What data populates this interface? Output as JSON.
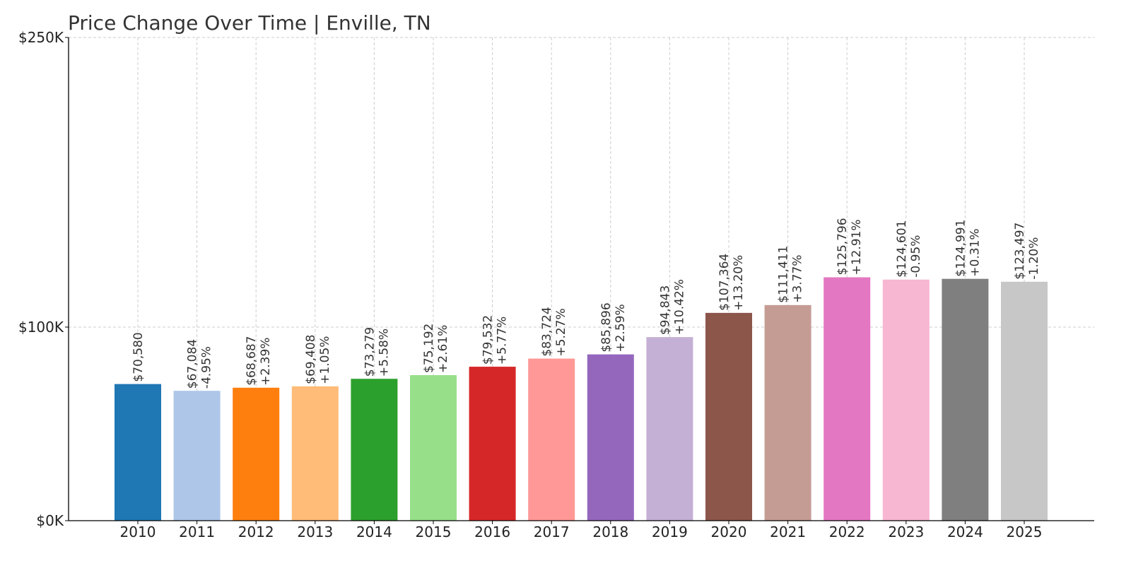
{
  "chart_data": {
    "type": "bar",
    "title": "Price Change Over Time | Enville, TN",
    "xlabel": "",
    "ylabel": "",
    "categories": [
      "2010",
      "2011",
      "2012",
      "2013",
      "2014",
      "2015",
      "2016",
      "2017",
      "2018",
      "2019",
      "2020",
      "2021",
      "2022",
      "2023",
      "2024",
      "2025"
    ],
    "values": [
      70580,
      67084,
      68687,
      69408,
      73279,
      75192,
      79532,
      83724,
      85896,
      94843,
      107364,
      111411,
      125796,
      124601,
      124991,
      123497
    ],
    "value_labels": [
      "$70,580",
      "$67,084",
      "$68,687",
      "$69,408",
      "$73,279",
      "$75,192",
      "$79,532",
      "$83,724",
      "$85,896",
      "$94,843",
      "$107,364",
      "$111,411",
      "$125,796",
      "$124,601",
      "$124,991",
      "$123,497"
    ],
    "change_labels": [
      "",
      "-4.95%",
      "+2.39%",
      "+1.05%",
      "+5.58%",
      "+2.61%",
      "+5.77%",
      "+5.27%",
      "+2.59%",
      "+10.42%",
      "+13.20%",
      "+3.77%",
      "+12.91%",
      "-0.95%",
      "+0.31%",
      "-1.20%"
    ],
    "colors": [
      "#1f77b4",
      "#aec7e8",
      "#ff7f0e",
      "#ffbb78",
      "#2ca02c",
      "#98df8a",
      "#d62728",
      "#ff9896",
      "#9467bd",
      "#c5b0d5",
      "#8c564b",
      "#c49c94",
      "#e377c2",
      "#f7b6d2",
      "#7f7f7f",
      "#c7c7c7"
    ],
    "y_ticks": [
      0,
      100000,
      250000
    ],
    "y_tick_labels": [
      "$0K",
      "$100K",
      "$250K"
    ],
    "ylim": [
      0,
      250000
    ],
    "scale": "piecewise-linear",
    "grid": true,
    "legend": "none"
  }
}
